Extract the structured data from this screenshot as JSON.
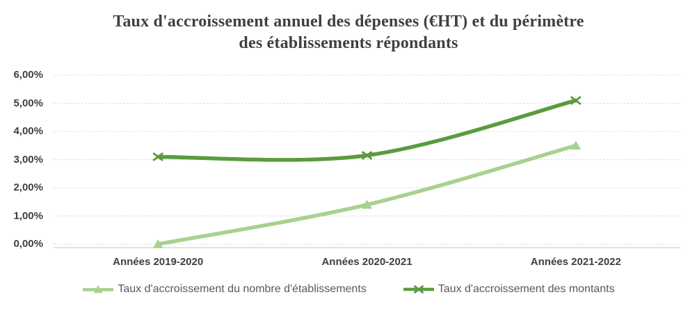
{
  "chart_data": {
    "type": "line",
    "title": "Taux d'accroissement annuel des dépenses (€HT) et du périmètre des établissements répondants",
    "title_lines": [
      "Taux d'accroissement annuel des dépenses (€HT) et du périmètre",
      "des établissements répondants"
    ],
    "categories": [
      "Années 2019-2020",
      "Années 2020-2021",
      "Années 2021-2022"
    ],
    "series": [
      {
        "name": "Taux d'accroissement du nombre d'établissements",
        "values": [
          0.0,
          1.4,
          3.5
        ],
        "unit": "%",
        "color": "#a9d18e",
        "marker": "triangle",
        "smooth": true
      },
      {
        "name": "Taux d'accroissement des montants",
        "values": [
          3.1,
          3.15,
          5.1
        ],
        "unit": "%",
        "color": "#5a9b3e",
        "marker": "x",
        "smooth": true
      }
    ],
    "y_axis": {
      "min": 0,
      "max": 6,
      "step": 1,
      "tick_labels": [
        "0,00%",
        "1,00%",
        "2,00%",
        "3,00%",
        "4,00%",
        "5,00%",
        "6,00%"
      ]
    },
    "grid": true,
    "legend_position": "bottom",
    "colors": {
      "grid": "#d9d9d9",
      "axis_line": "#d9d9d9",
      "title_text": "#404040",
      "axis_text": "#3f3f3f",
      "legend_text": "#595959"
    }
  }
}
